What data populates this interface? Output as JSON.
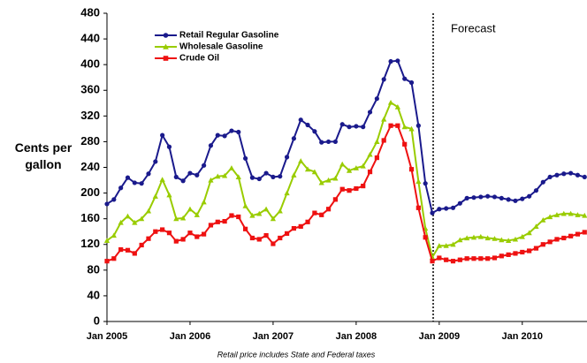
{
  "chart_data": {
    "type": "line",
    "y_label": "Cents per gallon",
    "footnote": "Retail price includes State and Federal taxes",
    "categories": [
      "Jan 2005",
      null,
      null,
      null,
      null,
      null,
      null,
      null,
      null,
      null,
      null,
      null,
      "Jan 2006",
      null,
      null,
      null,
      null,
      null,
      null,
      null,
      null,
      null,
      null,
      null,
      "Jan 2007",
      null,
      null,
      null,
      null,
      null,
      null,
      null,
      null,
      null,
      null,
      null,
      "Jan 2008",
      null,
      null,
      null,
      null,
      null,
      null,
      null,
      null,
      null,
      null,
      null,
      "Jan 2009",
      null,
      null,
      null,
      null,
      null,
      null,
      null,
      null,
      null,
      null,
      null,
      "Jan 2010",
      null,
      null,
      null,
      null,
      null,
      null,
      null,
      null,
      null
    ],
    "series": [
      {
        "name": "Retail Regular Gasoline",
        "color": "#1a1a8c",
        "marker": "circle",
        "values": [
          183,
          190,
          208,
          224,
          216,
          215,
          230,
          249,
          290,
          272,
          225,
          219,
          231,
          228,
          243,
          274,
          290,
          289,
          297,
          295,
          254,
          224,
          222,
          231,
          225,
          226,
          256,
          285,
          314,
          306,
          296,
          279,
          280,
          280,
          307,
          303,
          304,
          303,
          326,
          347,
          377,
          405,
          406,
          378,
          372,
          305,
          215,
          169,
          175,
          176,
          177,
          184,
          192,
          193,
          194,
          195,
          194,
          192,
          190,
          188,
          191,
          195,
          204,
          217,
          225,
          228,
          230,
          231,
          228,
          225
        ]
      },
      {
        "name": "Wholesale Gasoline",
        "color": "#99cc00",
        "marker": "triangle",
        "values": [
          126,
          134,
          154,
          164,
          154,
          160,
          172,
          195,
          221,
          197,
          160,
          161,
          175,
          166,
          186,
          220,
          226,
          227,
          239,
          225,
          180,
          165,
          168,
          175,
          160,
          172,
          200,
          228,
          250,
          237,
          233,
          216,
          220,
          223,
          245,
          235,
          239,
          242,
          260,
          280,
          315,
          341,
          334,
          303,
          300,
          218,
          145,
          100,
          118,
          118,
          120,
          127,
          130,
          131,
          132,
          130,
          129,
          127,
          126,
          128,
          132,
          138,
          148,
          158,
          163,
          166,
          168,
          168,
          166,
          165
        ]
      },
      {
        "name": "Crude Oil",
        "color": "#ee1111",
        "marker": "square",
        "values": [
          94,
          98,
          112,
          111,
          106,
          119,
          129,
          140,
          143,
          138,
          125,
          128,
          138,
          132,
          136,
          150,
          155,
          156,
          165,
          163,
          144,
          130,
          128,
          134,
          121,
          130,
          137,
          145,
          148,
          155,
          169,
          166,
          175,
          190,
          206,
          204,
          207,
          211,
          233,
          255,
          282,
          305,
          305,
          276,
          237,
          177,
          131,
          94,
          99,
          96,
          94,
          96,
          98,
          98,
          98,
          98,
          99,
          102,
          104,
          106,
          108,
          110,
          114,
          120,
          124,
          128,
          130,
          133,
          136,
          139
        ]
      }
    ],
    "annotations": [
      {
        "text": "Forecast",
        "x": 47
      }
    ],
    "ylim": [
      0,
      480
    ],
    "yticks": [
      0,
      40,
      80,
      120,
      160,
      200,
      240,
      280,
      320,
      360,
      400,
      440,
      480
    ],
    "legend": "upper left"
  }
}
